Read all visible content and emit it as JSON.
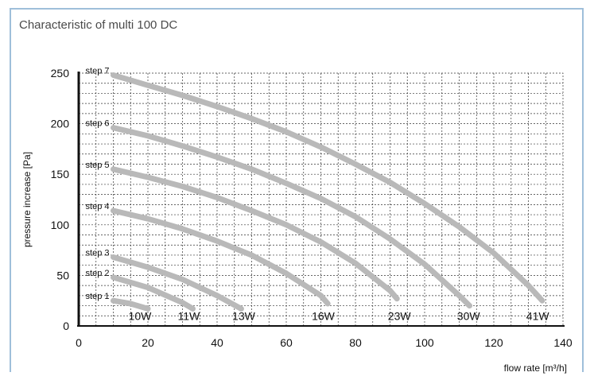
{
  "chart_data": {
    "type": "line",
    "title": "Characteristic of multi 100 DC",
    "xlabel": "flow rate [m³/h]",
    "ylabel": "pressure increase [Pa]",
    "xlim": [
      0,
      140
    ],
    "ylim": [
      0,
      250
    ],
    "x_ticks": [
      "0",
      "20",
      "40",
      "60",
      "80",
      "100",
      "120",
      "140"
    ],
    "y_ticks": [
      "0",
      "50",
      "100",
      "150",
      "200",
      "250"
    ],
    "grid": true,
    "series": [
      {
        "name": "step 1",
        "x": [
          10,
          15,
          20
        ],
        "y": [
          25,
          22,
          17
        ]
      },
      {
        "name": "step 2",
        "x": [
          10,
          20,
          30,
          33
        ],
        "y": [
          48,
          38,
          23,
          17
        ]
      },
      {
        "name": "step 3",
        "x": [
          10,
          20,
          30,
          40,
          47
        ],
        "y": [
          68,
          58,
          46,
          30,
          17
        ]
      },
      {
        "name": "step 4",
        "x": [
          10,
          20,
          30,
          40,
          50,
          60,
          70,
          72
        ],
        "y": [
          114,
          106,
          96,
          84,
          70,
          52,
          30,
          22
        ]
      },
      {
        "name": "step 5",
        "x": [
          10,
          20,
          30,
          40,
          50,
          60,
          70,
          80,
          90,
          92
        ],
        "y": [
          155,
          147,
          138,
          127,
          114,
          100,
          83,
          62,
          35,
          27
        ]
      },
      {
        "name": "step 6",
        "x": [
          10,
          20,
          30,
          40,
          50,
          60,
          70,
          80,
          90,
          100,
          110,
          113
        ],
        "y": [
          196,
          188,
          178,
          167,
          155,
          141,
          126,
          108,
          86,
          61,
          30,
          20
        ]
      },
      {
        "name": "step 7",
        "x": [
          10,
          20,
          30,
          40,
          50,
          60,
          70,
          80,
          90,
          100,
          110,
          120,
          130,
          134
        ],
        "y": [
          248,
          238,
          228,
          217,
          205,
          192,
          177,
          160,
          142,
          121,
          98,
          72,
          40,
          25
        ]
      }
    ],
    "power_labels": [
      {
        "text": "10W",
        "x": 21,
        "y": 10
      },
      {
        "text": "11W",
        "x": 35,
        "y": 10
      },
      {
        "text": "13W",
        "x": 51,
        "y": 10
      },
      {
        "text": "16W",
        "x": 74,
        "y": 10
      },
      {
        "text": "23W",
        "x": 96,
        "y": 10
      },
      {
        "text": "30W",
        "x": 116,
        "y": 10
      },
      {
        "text": "41W",
        "x": 136,
        "y": 10
      }
    ],
    "colors": {
      "curve": "#b9b9b9",
      "grid": "#333333",
      "frame": "#9fbfda"
    }
  }
}
